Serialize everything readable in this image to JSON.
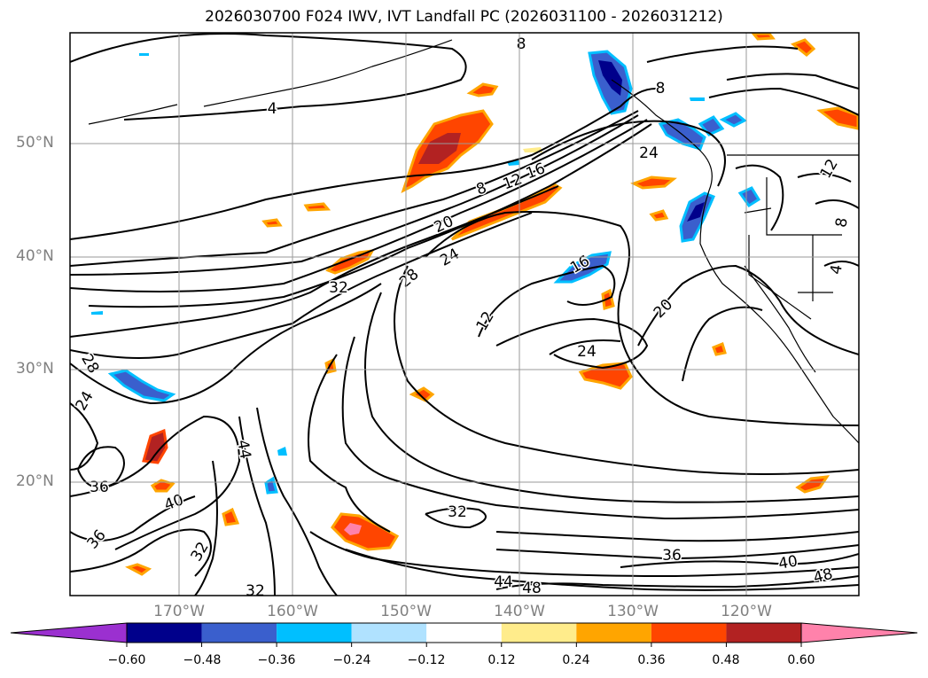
{
  "title": "2026030700 F024 IWV, IVT Landfall PC (2026031100 - 2026031212)",
  "lat_labels": [
    "50°N",
    "40°N",
    "30°N",
    "20°N"
  ],
  "lon_labels": [
    "170°W",
    "160°W",
    "150°W",
    "140°W",
    "130°W",
    "120°W"
  ],
  "contour_labels": [
    {
      "text": "4"
    },
    {
      "text": "8"
    },
    {
      "text": "8"
    },
    {
      "text": "8"
    },
    {
      "text": "12"
    },
    {
      "text": "16"
    },
    {
      "text": "20"
    },
    {
      "text": "24"
    },
    {
      "text": "28"
    },
    {
      "text": "32"
    },
    {
      "text": "12"
    },
    {
      "text": "16"
    },
    {
      "text": "24"
    },
    {
      "text": "20"
    },
    {
      "text": "24"
    },
    {
      "text": "28"
    },
    {
      "text": "24"
    },
    {
      "text": "36"
    },
    {
      "text": "40"
    },
    {
      "text": "44"
    },
    {
      "text": "36"
    },
    {
      "text": "32"
    },
    {
      "text": "32"
    },
    {
      "text": "32"
    },
    {
      "text": "44"
    },
    {
      "text": "48"
    },
    {
      "text": "36"
    },
    {
      "text": "40"
    },
    {
      "text": "48"
    },
    {
      "text": "12"
    },
    {
      "text": "8"
    },
    {
      "text": "4"
    }
  ],
  "colorbar": {
    "tick_labels": [
      "−0.60",
      "−0.48",
      "−0.36",
      "−0.24",
      "−0.12",
      "0.12",
      "0.24",
      "0.36",
      "0.48",
      "0.60"
    ],
    "colors": [
      "#9b30d0",
      "#00008b",
      "#3a5fcd",
      "#00bfff",
      "#b0e2ff",
      "#ffffff",
      "#ffec8b",
      "#ffa500",
      "#ff4500",
      "#b22222",
      "#ff82ab"
    ]
  },
  "colors": {
    "contour": "#000000",
    "grid": "#9a9a9a",
    "pos_weak": "#ffec8b",
    "pos_mid": "#ffa500",
    "pos_strong": "#ff4500",
    "pos_vstrong": "#b22222",
    "pos_max": "#ff82ab",
    "neg_weak": "#b0e2ff",
    "neg_mid": "#00bfff",
    "neg_strong": "#3a5fcd",
    "neg_max": "#00008b"
  }
}
